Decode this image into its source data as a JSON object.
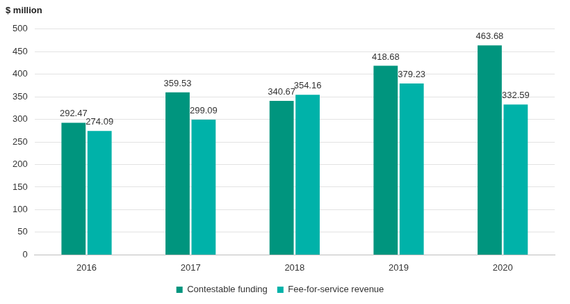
{
  "chart_data": {
    "type": "bar",
    "y_label": "$ million",
    "categories": [
      "2016",
      "2017",
      "2018",
      "2019",
      "2020"
    ],
    "series": [
      {
        "name": "Contestable funding",
        "color": "#00957e",
        "values": [
          292.47,
          359.53,
          340.67,
          418.68,
          463.68
        ]
      },
      {
        "name": "Fee-for-service revenue",
        "color": "#00b2a9",
        "values": [
          274.09,
          299.09,
          354.16,
          379.23,
          332.59
        ]
      }
    ],
    "ylim": [
      0,
      500
    ],
    "yticks": [
      0,
      50,
      100,
      150,
      200,
      250,
      300,
      350,
      400,
      450,
      500
    ],
    "grid": true,
    "legend": "bottom",
    "data_labels": true
  }
}
